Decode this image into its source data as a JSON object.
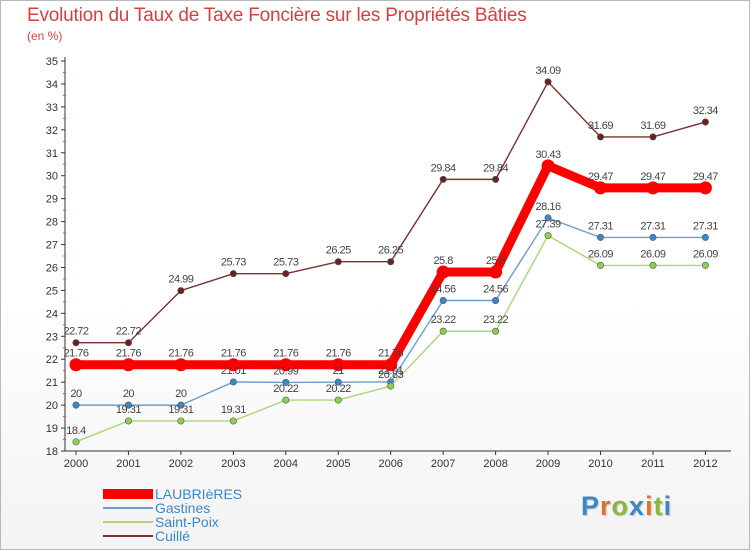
{
  "title": "Evolution du Taux de Taxe Foncière sur les Propriétés Bâties",
  "unit_label": "(en %)",
  "logo": {
    "text": "Proxiti",
    "letters": [
      {
        "ch": "P",
        "color": "#3e86c8"
      },
      {
        "ch": "r",
        "color": "#e0732a"
      },
      {
        "ch": "o",
        "color": "#8cb83a"
      },
      {
        "ch": "x",
        "color": "#3e86c8"
      },
      {
        "ch": "i",
        "color": "#e0732a"
      },
      {
        "ch": "t",
        "color": "#8cb83a"
      },
      {
        "ch": "i",
        "color": "#3e86c8"
      }
    ]
  },
  "chart_data": {
    "type": "line",
    "title": "Evolution du Taux de Taxe Foncière sur les Propriétés Bâties",
    "ylabel": "(en %)",
    "xlabel": "",
    "ylim": [
      18,
      35
    ],
    "yticks": [
      18,
      19,
      20,
      21,
      22,
      23,
      24,
      25,
      26,
      27,
      28,
      29,
      30,
      31,
      32,
      33,
      34,
      35
    ],
    "grid": false,
    "legend_position": "bottom-left",
    "x": [
      "2000",
      "2001",
      "2002",
      "2003",
      "2004",
      "2005",
      "2006",
      "2007",
      "2008",
      "2009",
      "2010",
      "2011",
      "2012"
    ],
    "series": [
      {
        "name": "LAUBRIèRES",
        "color": "#ff0000",
        "marker": "#ff0000",
        "thick": true,
        "values": [
          21.76,
          21.76,
          21.76,
          21.76,
          21.76,
          21.76,
          21.76,
          25.8,
          25.8,
          30.43,
          29.47,
          29.47,
          29.47
        ],
        "labels": [
          "21.76",
          "21.76",
          "21.76",
          "21.76",
          "21.76",
          "21.76",
          "21.76",
          "25.8",
          "25.8",
          "30.43",
          "29.47",
          "29.47",
          "29.47"
        ]
      },
      {
        "name": "Gastines",
        "color": "#6a9fcf",
        "marker": "#3e86c8",
        "thick": false,
        "values": [
          20,
          20,
          20,
          21.01,
          20.99,
          21,
          21.01,
          24.56,
          24.56,
          28.16,
          27.31,
          27.31,
          27.31
        ],
        "labels": [
          "20",
          "20",
          "20",
          "21.01",
          "20.99",
          "21",
          "21.01",
          "24.56",
          "24.56",
          "28.16",
          "27.31",
          "27.31",
          "27.31"
        ]
      },
      {
        "name": "Saint-Poix",
        "color": "#a9d77a",
        "marker": "#8cd14a",
        "thick": false,
        "values": [
          18.4,
          19.31,
          19.31,
          19.31,
          20.22,
          20.22,
          20.83,
          23.22,
          23.22,
          27.39,
          26.09,
          26.09,
          26.09
        ],
        "labels": [
          "18.4",
          "19.31",
          "19.31",
          "19.31",
          "20.22",
          "20.22",
          "20.83",
          "23.22",
          "23.22",
          "27.39",
          "26.09",
          "26.09",
          "26.09"
        ]
      },
      {
        "name": "Cuillé",
        "color": "#7a3030",
        "marker": "#6e2020",
        "thick": false,
        "values": [
          22.72,
          22.72,
          24.99,
          25.73,
          25.73,
          26.25,
          26.25,
          29.84,
          29.84,
          34.09,
          31.69,
          31.69,
          32.34
        ],
        "labels": [
          "22.72",
          "22.72",
          "24.99",
          "25.73",
          "25.73",
          "26.25",
          "26.25",
          "29.84",
          "29.84",
          "34.09",
          "31.69",
          "31.69",
          "32.34"
        ]
      }
    ]
  }
}
